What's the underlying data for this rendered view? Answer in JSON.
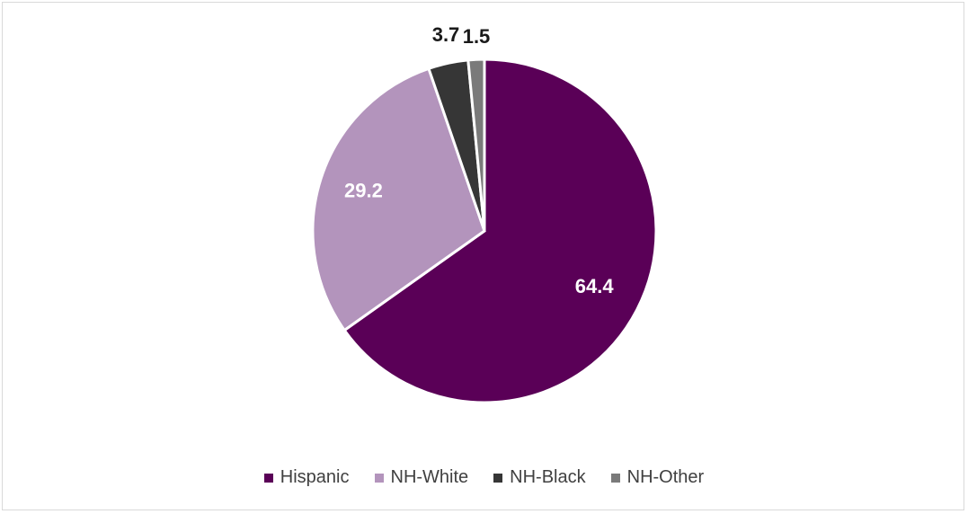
{
  "chart_data": {
    "type": "pie",
    "title": "",
    "categories": [
      "Hispanic",
      "NH-White",
      "NH-Black",
      "NH-Other"
    ],
    "values": [
      64.4,
      29.2,
      3.7,
      1.5
    ],
    "labels": [
      "64.4",
      "29.2",
      "3.7",
      "1.5"
    ],
    "colors": [
      "#5a0057",
      "#b394bc",
      "#363636",
      "#7a7a7a"
    ],
    "label_colors": [
      "#ffffff",
      "#ffffff",
      "#1a1a1a",
      "#1a1a1a"
    ],
    "start_angle_deg": 0,
    "direction": "clockwise",
    "legend_position": "bottom"
  },
  "legend": {
    "items": [
      {
        "label": "Hispanic",
        "color": "#5a0057"
      },
      {
        "label": "NH-White",
        "color": "#b394bc"
      },
      {
        "label": "NH-Black",
        "color": "#363636"
      },
      {
        "label": "NH-Other",
        "color": "#7a7a7a"
      }
    ]
  }
}
